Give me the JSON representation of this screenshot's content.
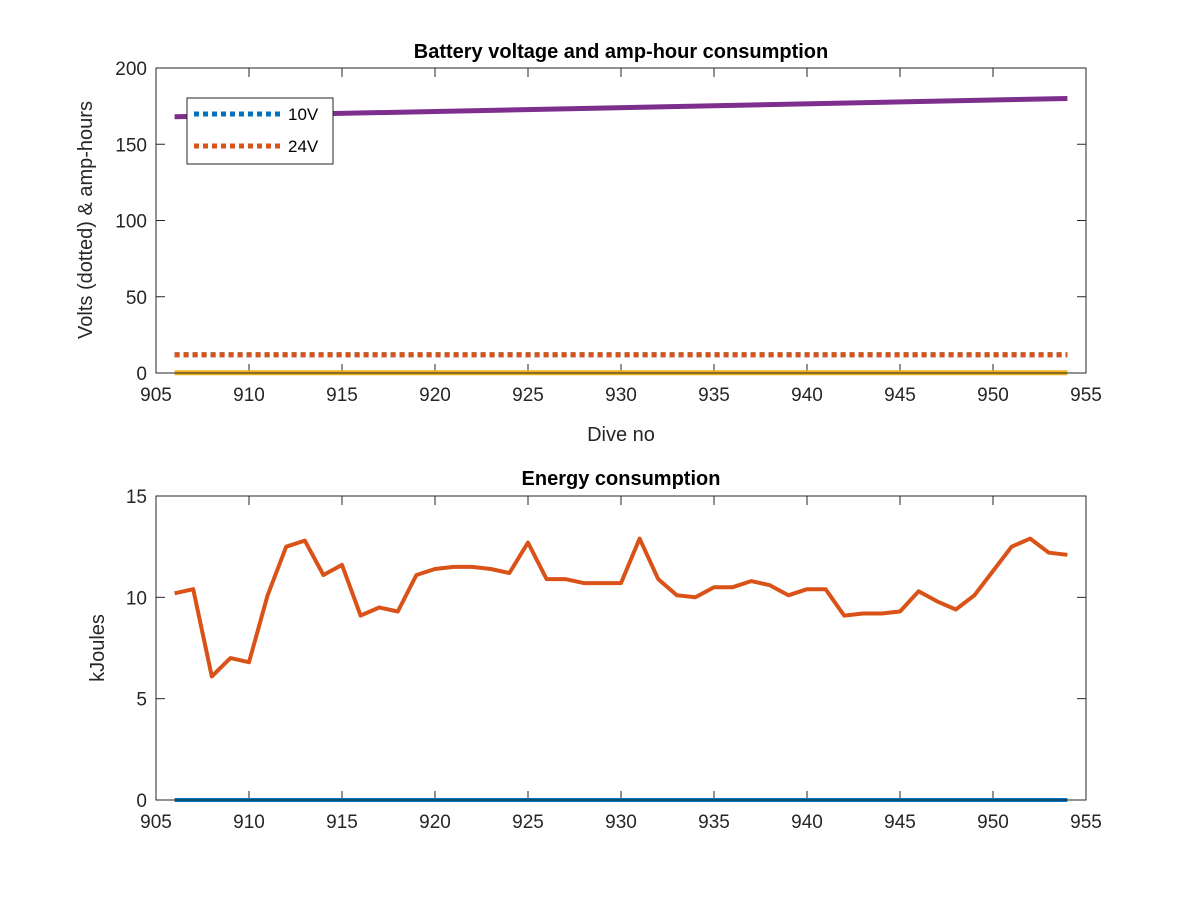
{
  "chart_data": [
    {
      "type": "line",
      "title": "Battery voltage and amp-hour consumption",
      "xlabel": "Dive no",
      "ylabel": "Volts (dotted) & amp-hours",
      "xlim": [
        905,
        955
      ],
      "ylim": [
        0,
        200
      ],
      "xticks": [
        "905",
        "910",
        "915",
        "920",
        "925",
        "930",
        "935",
        "940",
        "945",
        "950",
        "955"
      ],
      "yticks": [
        "0",
        "50",
        "100",
        "150",
        "200"
      ],
      "legend_position": "top-left",
      "grid": false,
      "x": [
        906,
        954
      ],
      "series": [
        {
          "name": "10V",
          "style": "dotted",
          "color": "#0072BD",
          "values": [
            12,
            12
          ]
        },
        {
          "name": "24V",
          "style": "dotted",
          "color": "#D95319",
          "values": [
            12,
            12
          ]
        },
        {
          "style": "solid",
          "color": "#EDB120",
          "values": [
            0.2,
            0.2
          ]
        },
        {
          "style": "solid",
          "color": "#7E2F8E",
          "values": [
            168,
            180
          ]
        }
      ]
    },
    {
      "type": "line",
      "title": "Energy consumption",
      "xlabel": "",
      "ylabel": "kJoules",
      "xlim": [
        905,
        955
      ],
      "ylim": [
        0,
        15
      ],
      "xticks": [
        "905",
        "910",
        "915",
        "920",
        "925",
        "930",
        "935",
        "940",
        "945",
        "950",
        "955"
      ],
      "yticks": [
        "0",
        "5",
        "10",
        "15"
      ],
      "grid": false,
      "x": [
        906,
        907,
        908,
        909,
        910,
        911,
        912,
        913,
        914,
        915,
        916,
        917,
        918,
        919,
        920,
        921,
        922,
        923,
        924,
        925,
        926,
        927,
        928,
        929,
        930,
        931,
        932,
        933,
        934,
        935,
        936,
        937,
        938,
        939,
        940,
        941,
        942,
        943,
        944,
        945,
        946,
        947,
        948,
        949,
        950,
        951,
        952,
        953,
        954
      ],
      "series": [
        {
          "style": "solid",
          "color": "#D95319",
          "values": [
            10.2,
            10.4,
            6.1,
            7.0,
            6.8,
            10.1,
            12.5,
            12.8,
            11.1,
            11.6,
            9.1,
            9.5,
            9.3,
            11.1,
            11.4,
            11.5,
            11.5,
            11.4,
            11.2,
            12.7,
            10.9,
            10.9,
            10.7,
            10.7,
            10.7,
            12.9,
            10.9,
            10.1,
            10.0,
            10.5,
            10.5,
            10.8,
            10.6,
            10.1,
            10.4,
            10.4,
            9.1,
            9.2,
            9.2,
            9.3,
            10.3,
            9.8,
            9.4,
            10.1,
            11.3,
            12.5,
            12.9,
            12.2,
            12.1
          ]
        },
        {
          "style": "solid",
          "color": "#0072BD",
          "values": [
            0,
            0,
            0,
            0,
            0,
            0,
            0,
            0,
            0,
            0,
            0,
            0,
            0,
            0,
            0,
            0,
            0,
            0,
            0,
            0,
            0,
            0,
            0,
            0,
            0,
            0,
            0,
            0,
            0,
            0,
            0,
            0,
            0,
            0,
            0,
            0,
            0,
            0,
            0,
            0,
            0,
            0,
            0,
            0,
            0,
            0,
            0,
            0,
            0
          ]
        }
      ]
    }
  ]
}
